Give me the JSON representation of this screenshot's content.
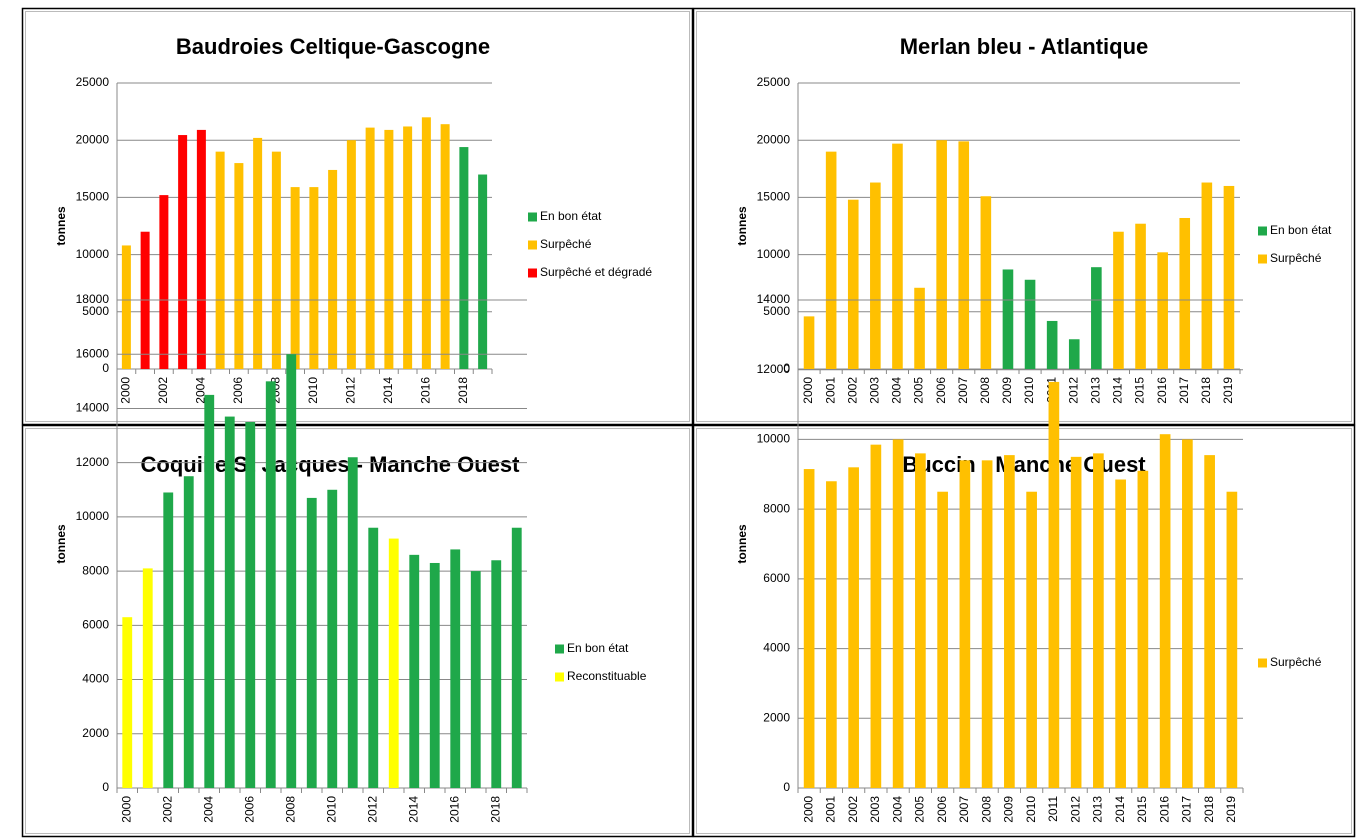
{
  "chart_data": [
    {
      "type": "bar",
      "title": "Baudroies Celtique-Gascogne",
      "y_label": "tonnes",
      "categories": [
        "2000",
        null,
        "2002",
        null,
        "2004",
        null,
        "2006",
        null,
        "2008",
        null,
        "2010",
        null,
        "2012",
        null,
        "2014",
        null,
        "2016",
        null,
        "2018",
        null
      ],
      "series": [
        {
          "name": "En bon état",
          "color": "#1fa84a",
          "values": [
            null,
            null,
            null,
            null,
            null,
            null,
            null,
            null,
            null,
            null,
            null,
            null,
            null,
            null,
            null,
            null,
            null,
            null,
            19400,
            17000
          ]
        },
        {
          "name": "Surpêché",
          "color": "#ffc000",
          "values": [
            10800,
            null,
            null,
            null,
            null,
            19000,
            18000,
            20200,
            19000,
            15900,
            15900,
            17400,
            20000,
            21100,
            20900,
            21200,
            22000,
            21400,
            null,
            null
          ]
        },
        {
          "name": "Surpêché et dégradé",
          "color": "#ff0000",
          "values": [
            null,
            12000,
            15200,
            20450,
            20900,
            null,
            null,
            null,
            null,
            null,
            null,
            null,
            null,
            null,
            null,
            null,
            null,
            null,
            null,
            null
          ]
        }
      ],
      "ylim": [
        0,
        25000
      ],
      "yticks": [
        0,
        5000,
        10000,
        15000,
        20000,
        25000
      ],
      "grid": true,
      "legend": "right"
    },
    {
      "type": "bar",
      "title": "Merlan bleu - Atlantique",
      "y_label": "tonnes",
      "categories": [
        "2000",
        "2001",
        "2002",
        "2003",
        "2004",
        "2005",
        "2006",
        "2007",
        "2008",
        "2009",
        "2010",
        "2011",
        "2012",
        "2013",
        "2014",
        "2015",
        "2016",
        "2017",
        "2018",
        "2019"
      ],
      "series": [
        {
          "name": "En bon état",
          "color": "#1fa84a",
          "values": [
            null,
            null,
            null,
            null,
            null,
            null,
            null,
            null,
            null,
            8700,
            7800,
            4200,
            2600,
            8900,
            null,
            null,
            null,
            null,
            null,
            null
          ]
        },
        {
          "name": "Surpêché",
          "color": "#ffc000",
          "values": [
            4600,
            19000,
            14800,
            16300,
            19700,
            7100,
            20000,
            19900,
            15100,
            null,
            null,
            null,
            null,
            null,
            12000,
            12700,
            10200,
            13200,
            16300,
            16000
          ]
        }
      ],
      "ylim": [
        0,
        25000
      ],
      "yticks": [
        0,
        5000,
        10000,
        15000,
        20000,
        25000
      ],
      "grid": true,
      "legend": "right"
    },
    {
      "type": "bar",
      "title": "Coquille St Jacques - Manche Ouest",
      "y_label": "tonnes",
      "categories": [
        "2000",
        null,
        "2002",
        null,
        "2004",
        null,
        "2006",
        null,
        "2008",
        null,
        "2010",
        null,
        "2012",
        null,
        "2014",
        null,
        "2016",
        null,
        "2018",
        null
      ],
      "series": [
        {
          "name": "En bon état",
          "color": "#1fa84a",
          "values": [
            null,
            null,
            10900,
            11500,
            14500,
            13700,
            13500,
            15000,
            16000,
            10700,
            11000,
            12200,
            9600,
            null,
            8600,
            8300,
            8800,
            8000,
            8400,
            9600
          ]
        },
        {
          "name": "Reconstituable",
          "color": "#ffff00",
          "values": [
            6300,
            8100,
            null,
            null,
            null,
            null,
            null,
            null,
            null,
            null,
            null,
            null,
            null,
            9200,
            null,
            null,
            null,
            null,
            null,
            null
          ]
        }
      ],
      "ylim": [
        0,
        18000
      ],
      "yticks": [
        0,
        2000,
        4000,
        6000,
        8000,
        10000,
        12000,
        14000,
        16000,
        18000
      ],
      "grid": true,
      "legend": "right"
    },
    {
      "type": "bar",
      "title": "Buccin - Manche Ouest",
      "y_label": "tonnes",
      "categories": [
        "2000",
        "2001",
        "2002",
        "2003",
        "2004",
        "2005",
        "2006",
        "2007",
        "2008",
        "2009",
        "2010",
        "2011",
        "2012",
        "2013",
        "2014",
        "2015",
        "2016",
        "2017",
        "2018",
        "2019"
      ],
      "series": [
        {
          "name": "Surpêché",
          "color": "#ffc000",
          "values": [
            9150,
            8800,
            9200,
            9850,
            10000,
            9600,
            8500,
            9400,
            9400,
            9550,
            8500,
            11650,
            9500,
            9600,
            8850,
            9100,
            10150,
            10000,
            9550,
            8500
          ]
        }
      ],
      "ylim": [
        0,
        14000
      ],
      "yticks": [
        0,
        2000,
        4000,
        6000,
        8000,
        10000,
        12000,
        14000
      ],
      "grid": true,
      "legend": "right"
    }
  ]
}
